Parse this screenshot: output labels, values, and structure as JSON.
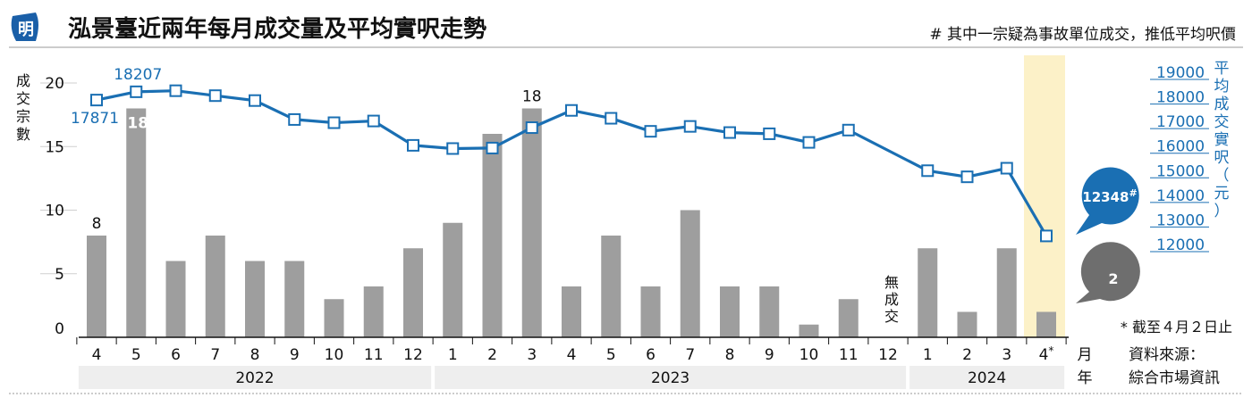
{
  "header": {
    "logo_char": "明",
    "title": "泓景臺近兩年每月成交量及平均實呎走勢",
    "note": "# 其中一宗疑為事故單位成交，推低平均呎價"
  },
  "colors": {
    "bar": "#9e9e9e",
    "line": "#1a6fb3",
    "highlight": "#fcf1c8",
    "year_band": "#eeeeee",
    "bubble_grey": "#6e6e6e"
  },
  "chart_data": {
    "type": "bar+line",
    "x_months": [
      "4",
      "5",
      "6",
      "7",
      "8",
      "9",
      "10",
      "11",
      "12",
      "1",
      "2",
      "3",
      "4",
      "5",
      "6",
      "7",
      "8",
      "9",
      "10",
      "11",
      "12",
      "1",
      "2",
      "3",
      "4*"
    ],
    "years": [
      {
        "label": "2022",
        "from": 0,
        "to": 8
      },
      {
        "label": "2023",
        "from": 9,
        "to": 20
      },
      {
        "label": "2024",
        "from": 21,
        "to": 24
      }
    ],
    "bar_series": {
      "ylabel": "成交宗數",
      "ylim": [
        0,
        20
      ],
      "ticks": [
        0,
        5,
        10,
        15,
        20
      ],
      "values": [
        8,
        18,
        6,
        8,
        6,
        6,
        3,
        4,
        7,
        9,
        16,
        18,
        4,
        8,
        4,
        10,
        4,
        4,
        1,
        3,
        0,
        7,
        2,
        7,
        2
      ]
    },
    "line_series": {
      "ylabel": "平均成交實呎（元）",
      "ylim": [
        11400,
        19800
      ],
      "ticks": [
        12000,
        13000,
        14000,
        15000,
        16000,
        17000,
        18000,
        19000
      ],
      "values": [
        17871,
        18207,
        18250,
        18050,
        17850,
        17080,
        16950,
        17020,
        16030,
        15900,
        15920,
        16750,
        17450,
        17130,
        16600,
        16800,
        16550,
        16500,
        16150,
        16650,
        15000,
        14750,
        15100,
        12348,
        null
      ],
      "note": "line points for 4 and 4* aligned as in source"
    },
    "labels": {
      "first_bar": "8",
      "second_bar": "18",
      "peak_bar": "18",
      "line_start": "17871",
      "line_peak": "18207",
      "no_deal": "無成交",
      "latest_price": "12348",
      "latest_price_mark": "#",
      "latest_count": "2"
    },
    "axis_suffix": {
      "month": "月",
      "year": "年"
    },
    "footnote": "* 截至４月２日止",
    "source_label": "資料來源：",
    "source_value": "綜合市場資訊"
  }
}
